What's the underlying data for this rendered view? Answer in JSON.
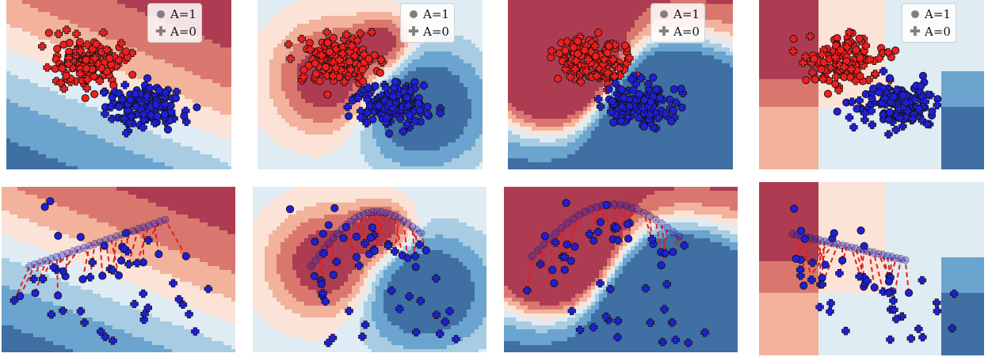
{
  "legend": {
    "a1": "A=1",
    "a0": "A=0"
  },
  "colors": {
    "red_point": "#ef1f1f",
    "blue_point": "#1f1fd8",
    "red_dark": "#ad3c52",
    "blue_dark": "#3f6fa3"
  },
  "chart_data": [
    {
      "type": "scatter",
      "subtype": "contour",
      "row": "top",
      "model": "linear",
      "legend": [
        "A=1",
        "A=0"
      ],
      "legend_placement": "top-right",
      "series": [
        {
          "marker": "circle",
          "color": "red"
        },
        {
          "marker": "circle",
          "color": "blue"
        }
      ]
    },
    {
      "type": "scatter",
      "subtype": "contour",
      "row": "top",
      "model": "rbf-smooth",
      "legend": [
        "A=1",
        "A=0"
      ],
      "legend_placement": "top-right"
    },
    {
      "type": "scatter",
      "subtype": "contour",
      "row": "top",
      "model": "rbf-sharp",
      "legend": [
        "A=1",
        "A=0"
      ],
      "legend_placement": "top-right"
    },
    {
      "type": "scatter",
      "subtype": "contour",
      "row": "top",
      "model": "tree",
      "legend": [
        "A=1",
        "A=0"
      ],
      "legend_placement": "top-right"
    },
    {
      "type": "scatter",
      "subtype": "contour",
      "row": "bottom",
      "model": "linear",
      "annotations": "dashed red arrows from original points to counterfactual points"
    },
    {
      "type": "scatter",
      "subtype": "contour",
      "row": "bottom",
      "model": "rbf-smooth",
      "annotations": "dashed red arrows from original points to counterfactual points"
    },
    {
      "type": "scatter",
      "subtype": "contour",
      "row": "bottom",
      "model": "rbf-sharp",
      "annotations": "dashed red arrows from original points to counterfactual points"
    },
    {
      "type": "scatter",
      "subtype": "contour",
      "row": "bottom",
      "model": "tree",
      "annotations": "dashed red arrows from original points to counterfactual points"
    }
  ]
}
